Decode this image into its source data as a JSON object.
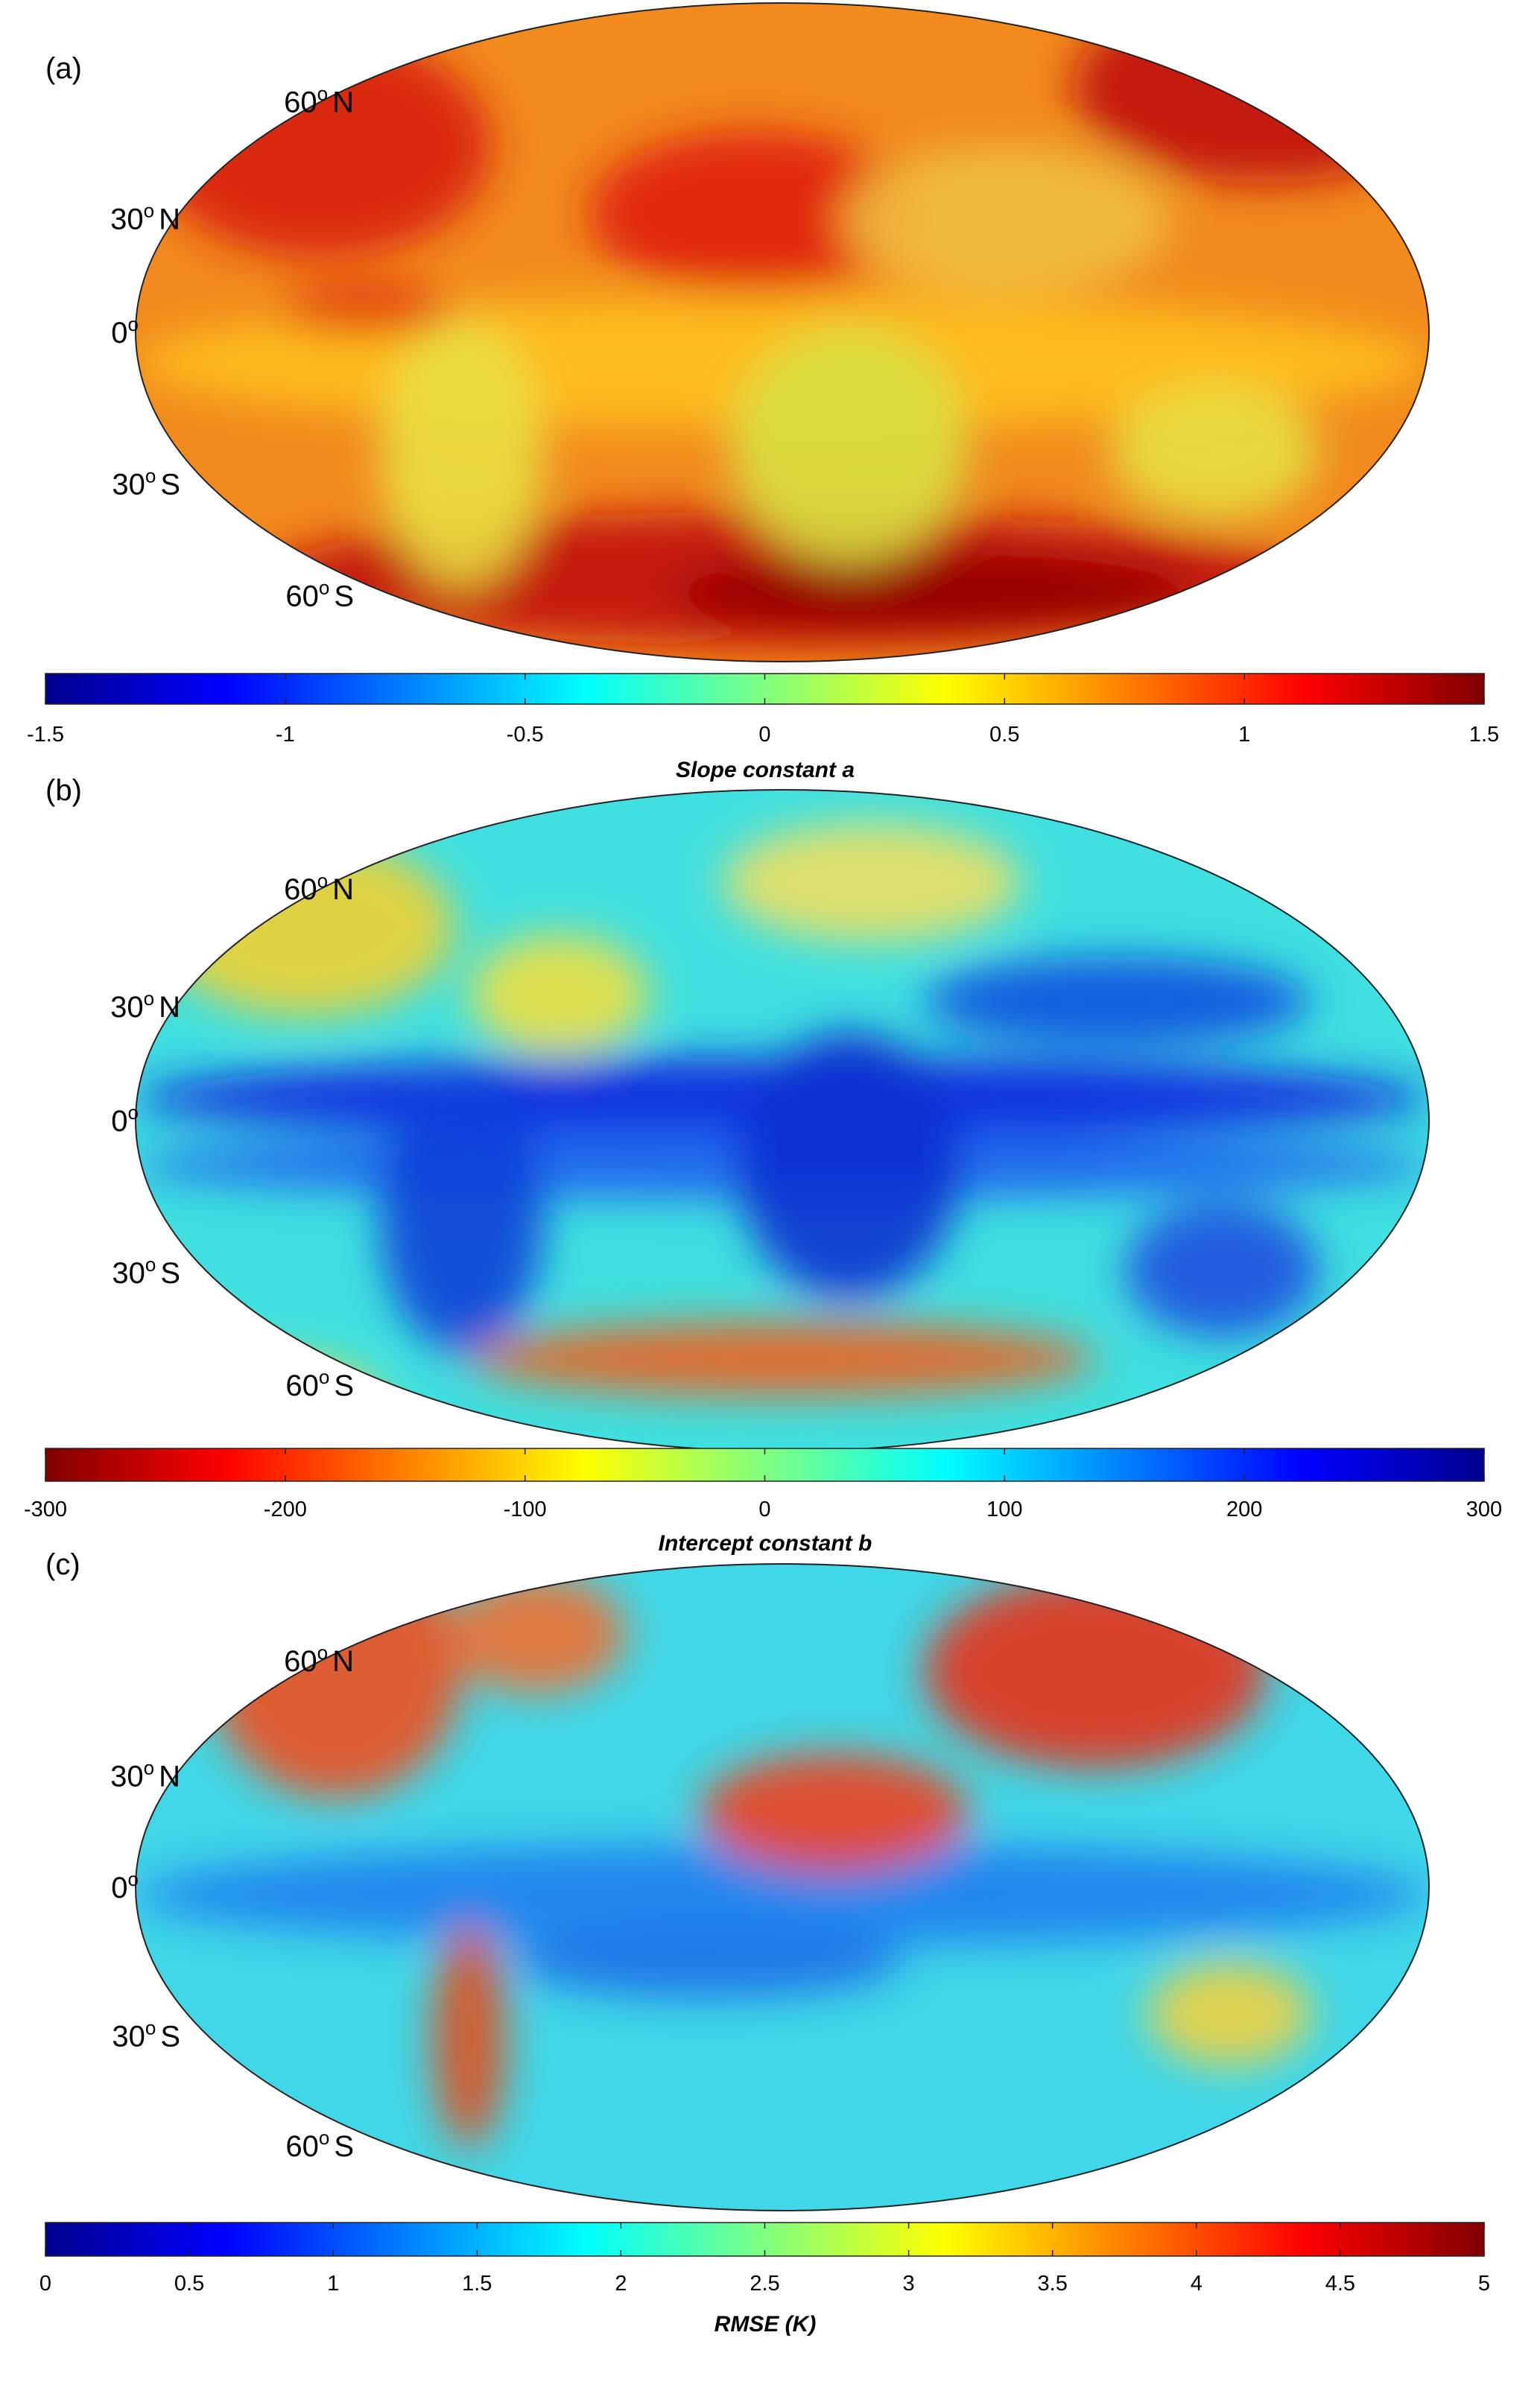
{
  "panels": [
    {
      "label": "(a)",
      "lat_labels": [
        {
          "deg": "60",
          "sup": "o",
          "hem": "N"
        },
        {
          "deg": "30",
          "sup": "o",
          "hem": "N"
        },
        {
          "deg": "0",
          "sup": "o"
        },
        {
          "deg": "30",
          "sup": "o",
          "hem": "S"
        },
        {
          "deg": "60",
          "sup": "o",
          "hem": "S"
        }
      ],
      "colorbar": {
        "colormap": "jet",
        "lim": [
          -1.5,
          1.5
        ],
        "ticks": [
          -1.5,
          -1,
          -0.5,
          0,
          0.5,
          1,
          1.5
        ],
        "label": "Slope constant a"
      }
    },
    {
      "label": "(b)",
      "lat_labels": [
        {
          "deg": "60",
          "sup": "o",
          "hem": "N"
        },
        {
          "deg": "30",
          "sup": "o",
          "hem": "N"
        },
        {
          "deg": "0",
          "sup": "o"
        },
        {
          "deg": "30",
          "sup": "o",
          "hem": "S"
        },
        {
          "deg": "60",
          "sup": "o",
          "hem": "S"
        }
      ],
      "colorbar": {
        "colormap": "jet_reversed",
        "lim": [
          -300,
          300
        ],
        "ticks": [
          -300,
          -200,
          -100,
          0,
          100,
          200,
          300
        ],
        "label": "Intercept constant b"
      }
    },
    {
      "label": "(c)",
      "lat_labels": [
        {
          "deg": "60",
          "sup": "o",
          "hem": "N"
        },
        {
          "deg": "30",
          "sup": "o",
          "hem": "N"
        },
        {
          "deg": "0",
          "sup": "o"
        },
        {
          "deg": "30",
          "sup": "o",
          "hem": "S"
        },
        {
          "deg": "60",
          "sup": "o",
          "hem": "S"
        }
      ],
      "colorbar": {
        "colormap": "jet",
        "lim": [
          0,
          5
        ],
        "ticks": [
          0,
          0.5,
          1,
          1.5,
          2,
          2.5,
          3,
          3.5,
          4,
          4.5,
          5
        ],
        "label": "RMSE (K)"
      }
    }
  ]
}
